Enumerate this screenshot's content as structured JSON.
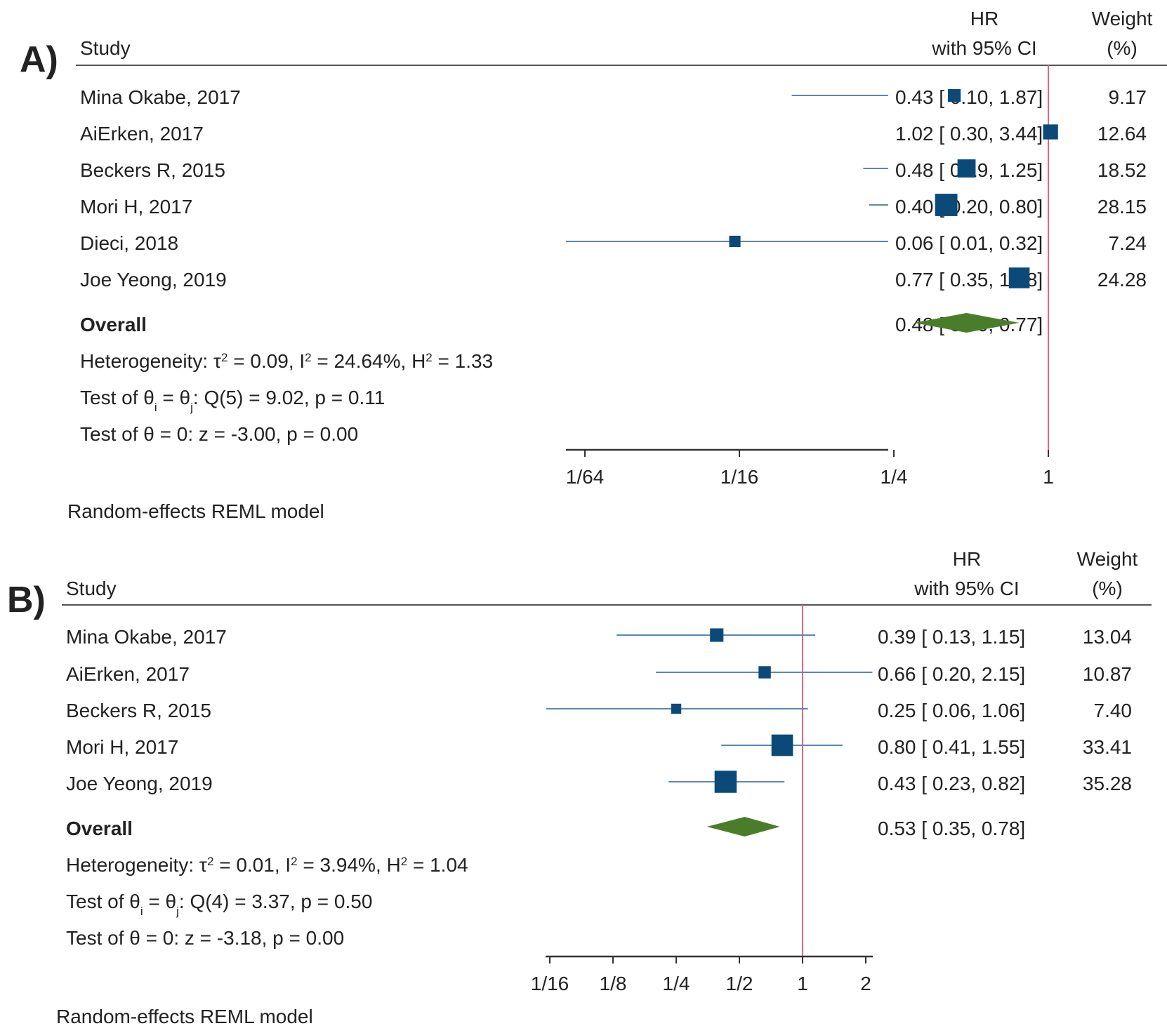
{
  "panels": [
    {
      "label": "A)",
      "headers": {
        "study": "Study",
        "hr_line1": "HR",
        "hr_line2": "with 95% CI",
        "weight_line1": "Weight",
        "weight_line2": "(%)"
      },
      "studies": [
        {
          "name": "Mina Okabe, 2017",
          "ci_text": "0.43 [ 0.10, 1.87]",
          "weight_text": "9.17"
        },
        {
          "name": "AiErken, 2017",
          "ci_text": "1.02 [ 0.30, 3.44]",
          "weight_text": "12.64"
        },
        {
          "name": "Beckers R, 2015",
          "ci_text": "0.48 [ 0.19, 1.25]",
          "weight_text": "18.52"
        },
        {
          "name": "Mori H, 2017",
          "ci_text": "0.40 [ 0.20, 0.80]",
          "weight_text": "28.15"
        },
        {
          "name": "Dieci, 2018",
          "ci_text": "0.06 [ 0.01, 0.32]",
          "weight_text": "7.24"
        },
        {
          "name": "Joe Yeong, 2019",
          "ci_text": "0.77 [ 0.35, 1.68]",
          "weight_text": "24.28"
        }
      ],
      "overall": {
        "label": "Overall",
        "ci_text": "0.48 [ 0.30, 0.77]"
      },
      "heterogeneity": {
        "prefix": "Heterogeneity: τ",
        "tau2": " = 0.09, I",
        "i2": " = 24.64%, H",
        "h2": " = 1.33"
      },
      "test_theta": {
        "prefix": "Test of θ",
        "mid": " = θ",
        "suffix": ": Q(5) = 9.02, p = 0.11"
      },
      "test_zero": "Test of θ = 0: z = -3.00, p = 0.00",
      "model": "Random-effects REML model",
      "axis": {
        "ticks": [
          "1/64",
          "1/16",
          "1/4",
          "1"
        ]
      }
    },
    {
      "label": "B)",
      "headers": {
        "study": "Study",
        "hr_line1": "HR",
        "hr_line2": "with 95% CI",
        "weight_line1": "Weight",
        "weight_line2": "(%)"
      },
      "studies": [
        {
          "name": "Mina Okabe, 2017",
          "ci_text": "0.39 [ 0.13, 1.15]",
          "weight_text": "13.04"
        },
        {
          "name": "AiErken, 2017",
          "ci_text": "0.66 [ 0.20, 2.15]",
          "weight_text": "10.87"
        },
        {
          "name": "Beckers R, 2015",
          "ci_text": "0.25 [ 0.06, 1.06]",
          "weight_text": "7.40"
        },
        {
          "name": "Mori H, 2017",
          "ci_text": "0.80 [ 0.41, 1.55]",
          "weight_text": "33.41"
        },
        {
          "name": "Joe Yeong, 2019",
          "ci_text": "0.43 [ 0.23, 0.82]",
          "weight_text": "35.28"
        }
      ],
      "overall": {
        "label": "Overall",
        "ci_text": "0.53 [ 0.35, 0.78]"
      },
      "heterogeneity": {
        "prefix": "Heterogeneity: τ",
        "tau2": " = 0.01, I",
        "i2": " = 3.94%, H",
        "h2": " = 1.04"
      },
      "test_theta": {
        "prefix": "Test of θ",
        "mid": " = θ",
        "suffix": ": Q(4) = 3.37, p = 0.50"
      },
      "test_zero": "Test of θ = 0: z = -3.18, p = 0.00",
      "model": "Random-effects REML model",
      "axis": {
        "ticks": [
          "1/16",
          "1/8",
          "1/4",
          "1/2",
          "1",
          "2"
        ]
      }
    }
  ],
  "colors": {
    "marker": "#0b4a78",
    "ci_line": "#5b87ad",
    "overall": "#4a7d2a",
    "null_line": "#e2667e",
    "rule": "#555555"
  },
  "chart_data": [
    {
      "type": "forest",
      "scale": "log2",
      "null_value": 1,
      "x_ticks": [
        0.015625,
        0.0625,
        0.25,
        1
      ],
      "studies": [
        {
          "name": "Mina Okabe, 2017",
          "hr": 0.43,
          "lower": 0.1,
          "upper": 1.87,
          "weight": 9.17
        },
        {
          "name": "AiErken, 2017",
          "hr": 1.02,
          "lower": 0.3,
          "upper": 3.44,
          "weight": 12.64
        },
        {
          "name": "Beckers R, 2015",
          "hr": 0.48,
          "lower": 0.19,
          "upper": 1.25,
          "weight": 18.52
        },
        {
          "name": "Mori H, 2017",
          "hr": 0.4,
          "lower": 0.2,
          "upper": 0.8,
          "weight": 28.15
        },
        {
          "name": "Dieci, 2018",
          "hr": 0.06,
          "lower": 0.01,
          "upper": 0.32,
          "weight": 7.24
        },
        {
          "name": "Joe Yeong, 2019",
          "hr": 0.77,
          "lower": 0.35,
          "upper": 1.68,
          "weight": 24.28
        }
      ],
      "overall": {
        "hr": 0.48,
        "lower": 0.3,
        "upper": 0.77
      }
    },
    {
      "type": "forest",
      "scale": "log2",
      "null_value": 1,
      "x_ticks": [
        0.0625,
        0.125,
        0.25,
        0.5,
        1,
        2
      ],
      "studies": [
        {
          "name": "Mina Okabe, 2017",
          "hr": 0.39,
          "lower": 0.13,
          "upper": 1.15,
          "weight": 13.04
        },
        {
          "name": "AiErken, 2017",
          "hr": 0.66,
          "lower": 0.2,
          "upper": 2.15,
          "weight": 10.87
        },
        {
          "name": "Beckers R, 2015",
          "hr": 0.25,
          "lower": 0.06,
          "upper": 1.06,
          "weight": 7.4
        },
        {
          "name": "Mori H, 2017",
          "hr": 0.8,
          "lower": 0.41,
          "upper": 1.55,
          "weight": 33.41
        },
        {
          "name": "Joe Yeong, 2019",
          "hr": 0.43,
          "lower": 0.23,
          "upper": 0.82,
          "weight": 35.28
        }
      ],
      "overall": {
        "hr": 0.53,
        "lower": 0.35,
        "upper": 0.78
      }
    }
  ]
}
